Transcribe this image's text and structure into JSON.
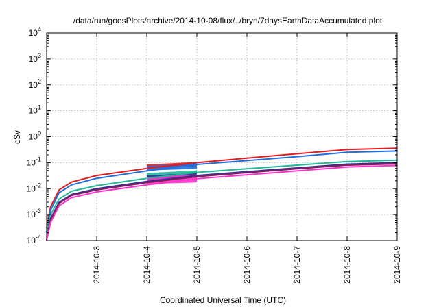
{
  "chart_data": {
    "type": "line",
    "title": "/data/run/goesPlots/archive/2014-10-08/flux/../bryn/7daysEarthDataAccumulated.plot",
    "xlabel": "Coordinated Universal Time (UTC)",
    "ylabel": "cSv",
    "y_scale": "log",
    "ylim": [
      0.0001,
      10000
    ],
    "y_ticks": [
      {
        "base": "10",
        "exp": "-4"
      },
      {
        "base": "10",
        "exp": "-3"
      },
      {
        "base": "10",
        "exp": "-2"
      },
      {
        "base": "10",
        "exp": "-1"
      },
      {
        "base": "10",
        "exp": "0"
      },
      {
        "base": "10",
        "exp": "1"
      },
      {
        "base": "10",
        "exp": "2"
      },
      {
        "base": "10",
        "exp": "3"
      },
      {
        "base": "10",
        "exp": "4"
      }
    ],
    "xlim": [
      "2014-10-02",
      "2014-10-09"
    ],
    "x_ticks": [
      "2014-10-3",
      "2014-10-4",
      "2014-10-5",
      "2014-10-6",
      "2014-10-7",
      "2014-10-8",
      "2014-10-9"
    ],
    "grid": true,
    "legend": "none",
    "series": [
      {
        "color": "#e41a1c",
        "points": [
          [
            "2014-10-02",
            0.0003
          ],
          [
            "2014-10-02.08",
            0.002
          ],
          [
            "2014-10-02.25",
            0.009
          ],
          [
            "2014-10-02.5",
            0.018
          ],
          [
            "2014-10-03",
            0.032
          ],
          [
            "2014-10-04",
            0.06
          ],
          [
            "2014-10-05",
            0.1
          ],
          [
            "2014-10-06",
            0.15
          ],
          [
            "2014-10-07",
            0.22
          ],
          [
            "2014-10-08",
            0.32
          ],
          [
            "2014-10-09",
            0.36
          ]
        ]
      },
      {
        "color": "#1f6fe0",
        "points": [
          [
            "2014-10-02",
            0.0002
          ],
          [
            "2014-10-02.08",
            0.0015
          ],
          [
            "2014-10-02.25",
            0.007
          ],
          [
            "2014-10-02.5",
            0.014
          ],
          [
            "2014-10-03",
            0.025
          ],
          [
            "2014-10-04",
            0.048
          ],
          [
            "2014-10-05",
            0.085
          ],
          [
            "2014-10-06",
            0.12
          ],
          [
            "2014-10-07",
            0.17
          ],
          [
            "2014-10-08",
            0.25
          ],
          [
            "2014-10-09",
            0.28
          ]
        ]
      },
      {
        "color": "#1fb89a",
        "points": [
          [
            "2014-10-02",
            0.0002
          ],
          [
            "2014-10-02.08",
            0.001
          ],
          [
            "2014-10-02.25",
            0.004
          ],
          [
            "2014-10-02.5",
            0.008
          ],
          [
            "2014-10-03",
            0.013
          ],
          [
            "2014-10-04",
            0.025
          ],
          [
            "2014-10-05",
            0.042
          ],
          [
            "2014-10-06",
            0.058
          ],
          [
            "2014-10-07",
            0.08
          ],
          [
            "2014-10-08",
            0.11
          ],
          [
            "2014-10-09",
            0.125
          ]
        ]
      },
      {
        "color": "#2e3192",
        "points": [
          [
            "2014-10-02",
            0.0001
          ],
          [
            "2014-10-02.08",
            0.0007
          ],
          [
            "2014-10-02.25",
            0.003
          ],
          [
            "2014-10-02.5",
            0.006
          ],
          [
            "2014-10-03",
            0.01
          ],
          [
            "2014-10-04",
            0.019
          ],
          [
            "2014-10-05",
            0.032
          ],
          [
            "2014-10-06",
            0.045
          ],
          [
            "2014-10-07",
            0.063
          ],
          [
            "2014-10-08",
            0.088
          ],
          [
            "2014-10-09",
            0.1
          ]
        ]
      },
      {
        "color": "#8b1a5a",
        "points": [
          [
            "2014-10-02",
            0.0001
          ],
          [
            "2014-10-02.08",
            0.0006
          ],
          [
            "2014-10-02.25",
            0.0027
          ],
          [
            "2014-10-02.5",
            0.0055
          ],
          [
            "2014-10-03",
            0.009
          ],
          [
            "2014-10-04",
            0.017
          ],
          [
            "2014-10-05",
            0.029
          ],
          [
            "2014-10-06",
            0.041
          ],
          [
            "2014-10-07",
            0.058
          ],
          [
            "2014-10-08",
            0.08
          ],
          [
            "2014-10-09",
            0.09
          ]
        ]
      },
      {
        "color": "#ff33cc",
        "points": [
          [
            "2014-10-02",
            0.0001
          ],
          [
            "2014-10-02.08",
            0.0005
          ],
          [
            "2014-10-02.25",
            0.0022
          ],
          [
            "2014-10-02.5",
            0.0045
          ],
          [
            "2014-10-03",
            0.0075
          ],
          [
            "2014-10-04",
            0.014
          ],
          [
            "2014-10-05",
            0.024
          ],
          [
            "2014-10-06",
            0.034
          ],
          [
            "2014-10-07",
            0.048
          ],
          [
            "2014-10-08",
            0.068
          ],
          [
            "2014-10-09",
            0.078
          ]
        ]
      }
    ],
    "bands": [
      {
        "color": "#e41a1c",
        "x_range": [
          "2014-10-04",
          "2014-10-05"
        ],
        "y_range": [
          0.06,
          0.085
        ]
      },
      {
        "color": "#1f6fe0",
        "x_range": [
          "2014-10-04",
          "2014-10-05"
        ],
        "y_range": [
          0.05,
          0.075
        ]
      },
      {
        "color": "#1fb89a",
        "x_range": [
          "2014-10-04",
          "2014-10-05"
        ],
        "y_range": [
          0.028,
          0.04
        ]
      },
      {
        "color": "#2e3192",
        "x_range": [
          "2014-10-04",
          "2014-10-05"
        ],
        "y_range": [
          0.022,
          0.032
        ]
      },
      {
        "color": "#ff33cc",
        "x_range": [
          "2014-10-04",
          "2014-10-05"
        ],
        "y_range": [
          0.015,
          0.028
        ]
      }
    ]
  }
}
